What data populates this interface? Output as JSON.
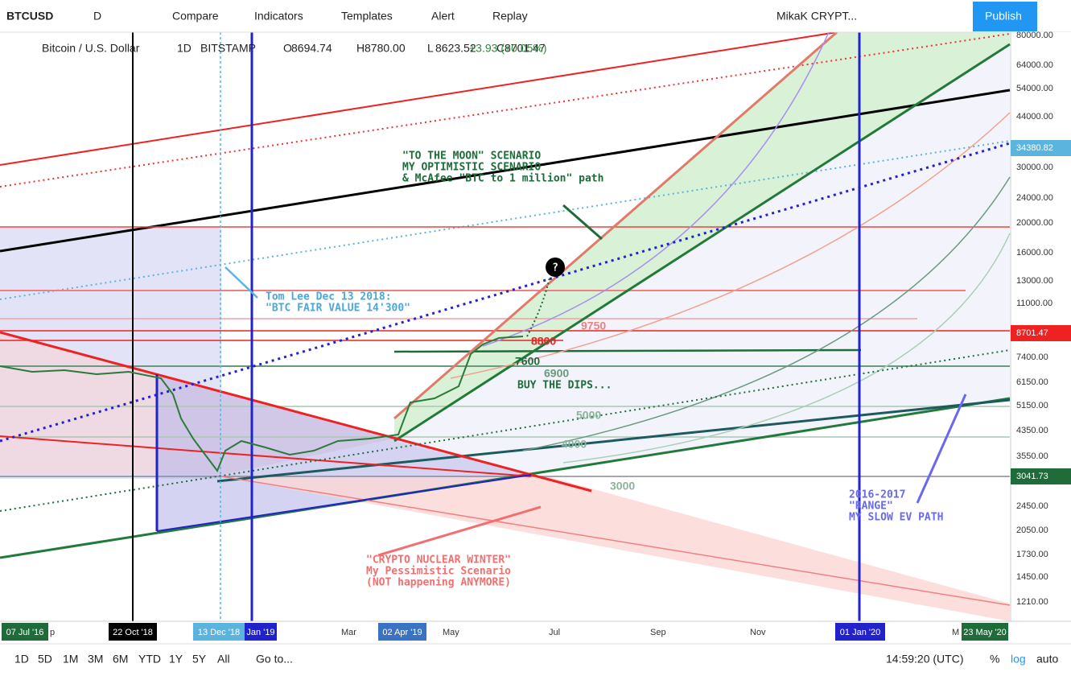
{
  "toolbar": {
    "symbol": "BTCUSD",
    "interval": "D",
    "buttons": [
      "Compare",
      "Indicators",
      "Templates",
      "Alert",
      "Replay"
    ],
    "layout": "MikaK CRYPT...",
    "publish": "Publish"
  },
  "legend": {
    "title": "Bitcoin / U.S. Dollar",
    "interval": "1D",
    "exchange": "BITSTAMP",
    "ohlc": [
      {
        "label": "O",
        "value": "8694.74"
      },
      {
        "label": "H",
        "value": "8780.00"
      },
      {
        "label": "L",
        "value": "8623.52"
      },
      {
        "label": "C",
        "value": "8701.47"
      }
    ],
    "change": "+3.93 (+0.05%)"
  },
  "price_axis": {
    "labels": [
      "80000.00",
      "64000.00",
      "54000.00",
      "44000.00",
      "30000.00",
      "24000.00",
      "20000.00",
      "16000.00",
      "13000.00",
      "11000.00",
      "7400.00",
      "6150.00",
      "5150.00",
      "4350.00",
      "3550.00",
      "2450.00",
      "2050.00",
      "1730.00",
      "1450.00",
      "1210.00"
    ],
    "highlighted": [
      "34380.82",
      "8701.47",
      "3041.73"
    ]
  },
  "time_axis": {
    "labels": [
      "p",
      "Mar",
      "May",
      "Jul",
      "Sep",
      "Nov",
      "M"
    ],
    "highlighted": [
      "07 Jul '16",
      "22 Oct '18",
      "13 Dec '18",
      "Jan '19",
      "02 Apr '19",
      "01 Jan '20",
      "23 May '20"
    ]
  },
  "levels": [
    "9750",
    "8800",
    "7600",
    "6900",
    "5000",
    "4000",
    "3000"
  ],
  "annotations": [
    {
      "lines": [
        "\"TO THE MOON\" SCENARIO",
        "MY OPTIMISTIC SCENARIO",
        "& McAfee \"BTC to 1 million\" path"
      ]
    },
    {
      "lines": [
        "Tom Lee Dec 13 2018:",
        "\"BTC FAIR VALUE 14'300\""
      ]
    },
    {
      "lines": [
        "BUY THE DIPS..."
      ]
    },
    {
      "lines": [
        "\"CRYPTO NUCLEAR WINTER\"",
        "My Pessimistic Scenario",
        "(NOT happening ANYMORE)"
      ]
    },
    {
      "lines": [
        "2016-2017",
        "\"RANGE\"",
        "MY SLOW EV PATH"
      ]
    },
    {
      "lines": [
        "?"
      ]
    }
  ],
  "bottom_bar": {
    "ranges": [
      "1D",
      "5D",
      "1M",
      "3M",
      "6M",
      "YTD",
      "1Y",
      "5Y",
      "All"
    ],
    "goto": "Go to...",
    "clock": "14:59:20 (UTC)",
    "percent": "%",
    "log": "log",
    "auto": "auto"
  }
}
